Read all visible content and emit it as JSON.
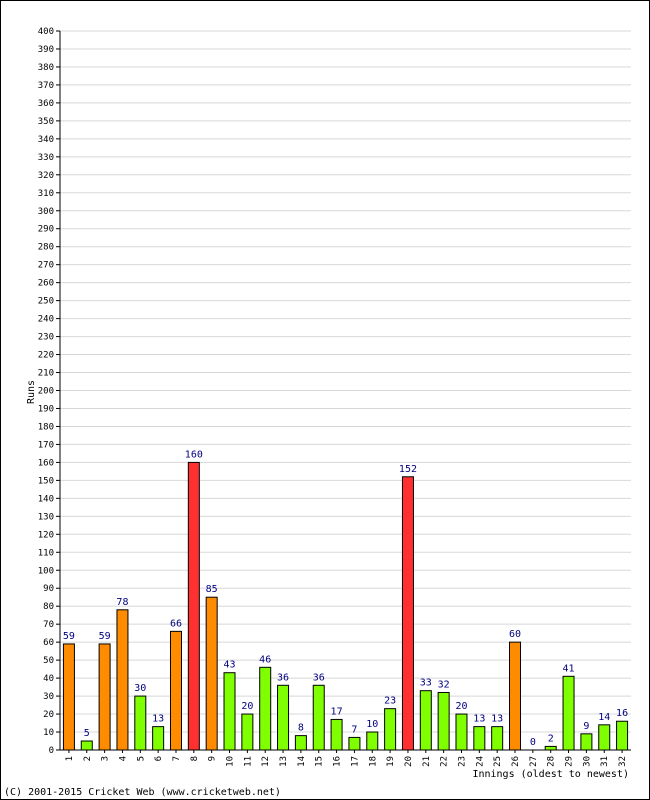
{
  "chart_data": {
    "type": "bar",
    "ylabel": "Runs",
    "xlabel": "Innings (oldest to newest)",
    "ylim": [
      0,
      400
    ],
    "ytick_step": 10,
    "grid": true,
    "categories": [
      "1",
      "2",
      "3",
      "4",
      "5",
      "6",
      "7",
      "8",
      "9",
      "10",
      "11",
      "12",
      "13",
      "14",
      "15",
      "16",
      "17",
      "18",
      "19",
      "20",
      "21",
      "22",
      "23",
      "24",
      "25",
      "26",
      "27",
      "28",
      "29",
      "30",
      "31",
      "32"
    ],
    "values": [
      59,
      5,
      59,
      78,
      30,
      13,
      66,
      160,
      85,
      43,
      20,
      46,
      36,
      8,
      36,
      17,
      7,
      10,
      23,
      152,
      33,
      32,
      20,
      13,
      13,
      60,
      0,
      2,
      41,
      9,
      14,
      16
    ],
    "colors": {
      "under_50": "#80ff00",
      "fifty": "#ff8c00",
      "hundred": "#ff3030",
      "outline": "#000000",
      "grid": "#d8d8d8",
      "data_label": "#000080"
    }
  },
  "footer": {
    "copyright": "(C) 2001-2015 Cricket Web (www.cricketweb.net)"
  }
}
